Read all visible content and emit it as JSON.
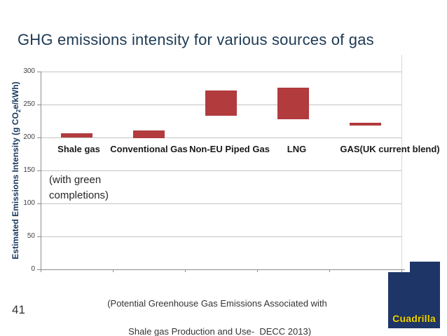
{
  "slide": {
    "title": "GHG emissions intensity for various sources of gas",
    "page_number": "41",
    "caption_lines": [
      "(Potential Greenhouse Gas Emissions Associated with",
      "Shale gas Production and Use-  DECC 2013)"
    ],
    "logo": {
      "text": "Cuadrilla"
    }
  },
  "chart_data": {
    "type": "bar",
    "subtype": "floating_range_bars",
    "title": "",
    "xlabel": "",
    "ylabel": "Estimated Emissions Intensity (g CO2e/kWh)",
    "ylabel_pre": "Estimated Emissions Intensity (g CO",
    "ylabel_sub": "2",
    "ylabel_post": "e/kWh)",
    "ylim": [
      0,
      300
    ],
    "yticks": [
      300,
      250,
      200,
      150,
      100,
      50,
      0
    ],
    "grid": true,
    "legend": false,
    "categories": [
      "Shale gas",
      "Conventional Gas",
      "Non-EU Piped Gas",
      "LNG",
      "GAS(UK current blend)"
    ],
    "series": [
      {
        "name": "Estimated emissions intensity range (g CO2e/kWh)",
        "ranges": [
          [
            200,
            206
          ],
          [
            199,
            210
          ],
          [
            233,
            271
          ],
          [
            228,
            276
          ],
          [
            218,
            222
          ]
        ]
      }
    ],
    "annotation": "(with green completions)"
  },
  "colors": {
    "title_text": "#1e3a54",
    "axis_title_text": "#17375d",
    "category_label_text": "#1a1a1a",
    "bar": "#b23b3e",
    "gridline": "#c4c4c4",
    "axis_line": "#8c8c8c",
    "plot_border": "#d9d9d9",
    "caption_text": "#333333",
    "logo_navy": "#1e3567",
    "logo_yellow": "#f2d600"
  }
}
